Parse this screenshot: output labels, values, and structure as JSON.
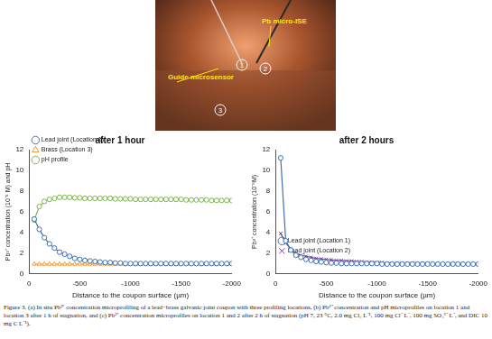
{
  "photo": {
    "labels": [
      "Pb micro-ISE",
      "Guide microsensor"
    ],
    "locations": [
      "1",
      "2",
      "3"
    ]
  },
  "chart_data": [
    {
      "type": "line",
      "title": "after 1 hour",
      "x_label": "Distance to the coupon surface (µm)",
      "y_label": "Pb²⁺ concentration (10⁻⁵ M) and pH",
      "xlim": [
        0,
        -2000
      ],
      "xticks": [
        0,
        -500,
        -1000,
        -1500,
        -2000
      ],
      "ylim": [
        0,
        12
      ],
      "yticks": [
        0,
        2,
        4,
        6,
        8,
        10,
        12
      ],
      "grid": false,
      "legend": "upper left",
      "x": [
        -50,
        -100,
        -150,
        -200,
        -250,
        -300,
        -350,
        -400,
        -450,
        -500,
        -550,
        -600,
        -650,
        -700,
        -750,
        -800,
        -850,
        -900,
        -950,
        -1000,
        -1050,
        -1100,
        -1150,
        -1200,
        -1250,
        -1300,
        -1350,
        -1400,
        -1450,
        -1500,
        -1550,
        -1600,
        -1650,
        -1700,
        -1750,
        -1800,
        -1850,
        -1900,
        -1950,
        -2000
      ],
      "series": [
        {
          "name": "Lead joint (Location 1)",
          "color": "#3a72b8",
          "marker": "circle",
          "values": [
            5.3,
            4.3,
            3.5,
            2.9,
            2.5,
            2.1,
            1.9,
            1.7,
            1.5,
            1.4,
            1.3,
            1.25,
            1.2,
            1.15,
            1.1,
            1.1,
            1.05,
            1.05,
            1.0,
            1.0,
            1.0,
            1.0,
            1.0,
            1.0,
            1.0,
            1.0,
            1.0,
            1.0,
            1.0,
            1.0,
            1.0,
            1.0,
            1.0,
            1.0,
            1.0,
            1.0,
            1.0,
            1.0,
            1.0,
            1.0
          ]
        },
        {
          "name": "Brass (Location 3)",
          "color": "#f39a3a",
          "marker": "triangle",
          "values": [
            0.95,
            0.95,
            0.95,
            0.95,
            0.95,
            0.95,
            0.95,
            0.95,
            0.95,
            0.95,
            0.95,
            0.95,
            0.95,
            0.95,
            0.95,
            0.95,
            0.95,
            0.95,
            0.95,
            0.95,
            0.95,
            0.95,
            0.95,
            0.95,
            0.95,
            0.95,
            0.95,
            0.95,
            0.95,
            0.95,
            0.95,
            0.95,
            0.95,
            0.95,
            0.95,
            0.95,
            0.95,
            0.95,
            0.95,
            0.95
          ]
        },
        {
          "name": "pH profile",
          "color": "#7ab648",
          "marker": "circle",
          "values": [
            5.2,
            6.5,
            7.0,
            7.2,
            7.3,
            7.4,
            7.4,
            7.4,
            7.35,
            7.35,
            7.3,
            7.3,
            7.3,
            7.3,
            7.3,
            7.3,
            7.25,
            7.25,
            7.25,
            7.25,
            7.2,
            7.2,
            7.2,
            7.2,
            7.2,
            7.2,
            7.2,
            7.2,
            7.2,
            7.2,
            7.15,
            7.15,
            7.15,
            7.15,
            7.15,
            7.1,
            7.1,
            7.1,
            7.1,
            7.1
          ]
        }
      ]
    },
    {
      "type": "line",
      "title": "after 2 hours",
      "x_label": "Distance to the coupon surface (µm)",
      "y_label": "Pb²⁺ concentration (10⁻⁵M)",
      "xlim": [
        0,
        -2000
      ],
      "xticks": [
        0,
        -500,
        -1000,
        -1500,
        -2000
      ],
      "ylim": [
        0,
        12
      ],
      "yticks": [
        0,
        2,
        4,
        6,
        8,
        10,
        12
      ],
      "grid": false,
      "legend": "upper right",
      "x": [
        -50,
        -100,
        -150,
        -200,
        -250,
        -300,
        -350,
        -400,
        -450,
        -500,
        -550,
        -600,
        -650,
        -700,
        -750,
        -800,
        -850,
        -900,
        -950,
        -1000,
        -1050,
        -1100,
        -1150,
        -1200,
        -1250,
        -1300,
        -1350,
        -1400,
        -1450,
        -1500,
        -1550,
        -1600,
        -1650,
        -1700,
        -1750,
        -1800,
        -1850,
        -1900,
        -1950,
        -2000
      ],
      "series": [
        {
          "name": "Lead joint (Location 1)",
          "color": "#3a72b8",
          "marker": "circle",
          "values": [
            11.2,
            3.2,
            2.3,
            1.8,
            1.6,
            1.4,
            1.3,
            1.2,
            1.15,
            1.1,
            1.05,
            1.05,
            1.0,
            1.0,
            1.0,
            1.0,
            1.0,
            1.0,
            1.0,
            1.0,
            0.95,
            0.95,
            0.95,
            0.95,
            0.95,
            0.95,
            0.95,
            0.95,
            0.95,
            0.95,
            0.95,
            0.95,
            0.95,
            0.95,
            0.95,
            0.95,
            0.95,
            0.95,
            0.95,
            0.95
          ]
        },
        {
          "name": "Lead joint (Location 2)",
          "color": "#7a3e9d",
          "marker": "x",
          "values": [
            3.9,
            3.0,
            2.4,
            2.0,
            1.8,
            1.7,
            1.6,
            1.5,
            1.45,
            1.4,
            1.35,
            1.3,
            1.3,
            1.25,
            1.25,
            1.2,
            1.2,
            1.15,
            1.15,
            1.1,
            1.1,
            1.05,
            1.05,
            1.05,
            1.0,
            1.0,
            1.0,
            1.0,
            1.0,
            1.0,
            0.95,
            0.95,
            0.95,
            0.95,
            0.95,
            0.95,
            0.95,
            0.95,
            0.95,
            0.95
          ]
        }
      ]
    }
  ],
  "caption": "Figure 3. (a) In situ Pb²⁺ concentration microprofiling of a lead−brass galvanic joint coupon with three profiling locations, (b) Pb²⁺ concentration and pH microprofiles on location 1 and location 3 after 1 h of stagnation, and (c) Pb²⁺ concentration microprofiles on location 1 and 2 after 2 h of stagnation (pH 7, 23 °C, 2.0 mg Cl₂ L⁻¹, 100 mg Cl⁻ L⁻, 100 mg SO₄²⁻ L⁻, and DIC 10 mg C L⁻¹)."
}
